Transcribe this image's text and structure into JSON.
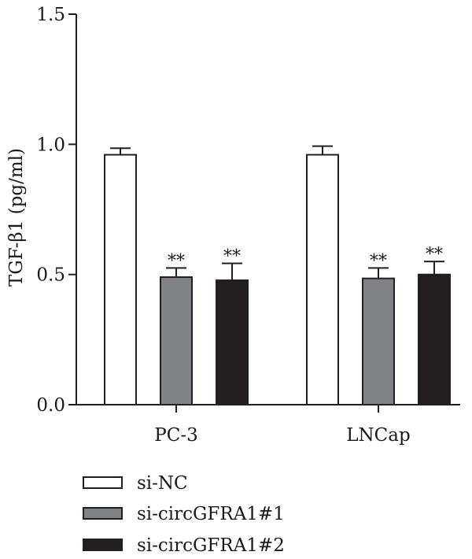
{
  "chart_data": {
    "type": "bar",
    "title": "",
    "xlabel": "",
    "ylabel": "TGF-β1 (pg/ml)",
    "ylim": [
      0,
      1.5
    ],
    "yticks": [
      "0.0",
      "0.5",
      "1.0",
      "1.5"
    ],
    "categories": [
      "PC-3",
      "LNCap"
    ],
    "series": [
      {
        "name": "si-NC",
        "values": [
          0.96,
          0.96
        ],
        "errors": [
          0.025,
          0.033
        ],
        "significance": [
          "",
          ""
        ],
        "color": "#ffffff"
      },
      {
        "name": "si-circGFRA1#1",
        "values": [
          0.49,
          0.485
        ],
        "errors": [
          0.035,
          0.04
        ],
        "significance": [
          "**",
          "**"
        ],
        "color": "#808285"
      },
      {
        "name": "si-circGFRA1#2",
        "values": [
          0.478,
          0.5
        ],
        "errors": [
          0.065,
          0.05
        ],
        "significance": [
          "**",
          "**"
        ],
        "color": "#231f20"
      }
    ],
    "legend_position": "bottom-left",
    "grid": false
  }
}
